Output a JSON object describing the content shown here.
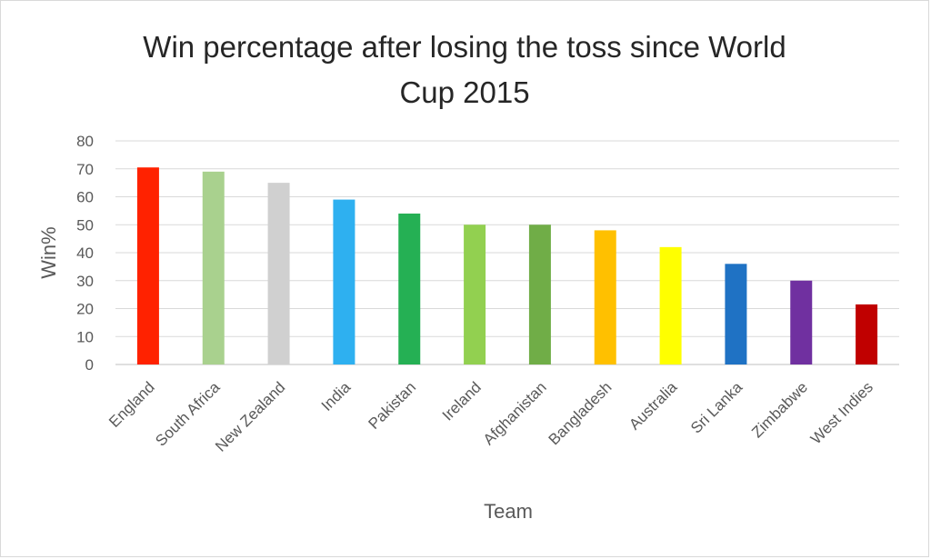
{
  "chart_data": {
    "type": "bar",
    "title_line1": "Win percentage after losing the toss since World",
    "title_line2": "Cup 2015",
    "xlabel": "Team",
    "ylabel": "Win%",
    "ylim": [
      0,
      80
    ],
    "yticks": [
      0,
      10,
      20,
      30,
      40,
      50,
      60,
      70,
      80
    ],
    "grid": true,
    "legend": "none",
    "categories": [
      "England",
      "South Africa",
      "New Zealand",
      "India",
      "Pakistan",
      "Ireland",
      "Afghanistan",
      "Bangladesh",
      "Australia",
      "Sri Lanka",
      "Zimbabwe",
      "West Indies"
    ],
    "values": [
      70.5,
      69,
      65,
      59,
      54,
      50,
      50,
      48,
      42,
      36,
      30,
      21.5
    ],
    "colors": [
      "#ff2200",
      "#a9d18e",
      "#d0d0d0",
      "#2eb0f0",
      "#25b054",
      "#92d050",
      "#70ad47",
      "#ffc000",
      "#ffff00",
      "#1f72c4",
      "#7030a0",
      "#c00000"
    ]
  }
}
